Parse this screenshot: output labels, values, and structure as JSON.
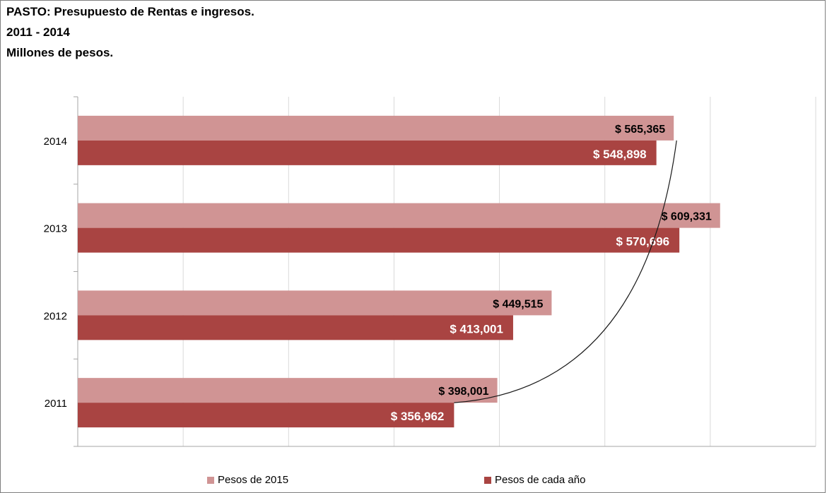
{
  "title_lines": [
    "PASTO: Presupuesto de Rentas e ingresos.",
    "2011 - 2014",
    "Millones de pesos."
  ],
  "legend": [
    {
      "label": "Pesos de 2015",
      "color": "#d09494"
    },
    {
      "label": "Pesos de cada año",
      "color": "#a94442"
    }
  ],
  "chart_data": {
    "type": "bar",
    "orientation": "horizontal",
    "categories": [
      "2011",
      "2012",
      "2013",
      "2014"
    ],
    "series": [
      {
        "name": "Pesos de 2015",
        "color": "#d09494",
        "values": [
          398001,
          449515,
          609331,
          565365
        ],
        "labels": [
          "$ 398,001",
          "$ 449,515",
          "$ 609,331",
          "$ 565,365"
        ]
      },
      {
        "name": "Pesos de cada año",
        "color": "#a94442",
        "values": [
          356962,
          413001,
          570696,
          548898
        ],
        "labels": [
          "$ 356,962",
          "$ 413,001",
          "$ 570,696",
          "$ 548,898"
        ]
      }
    ],
    "xlim": [
      0,
      700000
    ],
    "grid": true,
    "legend_position": "bottom",
    "trend_curve": true
  }
}
